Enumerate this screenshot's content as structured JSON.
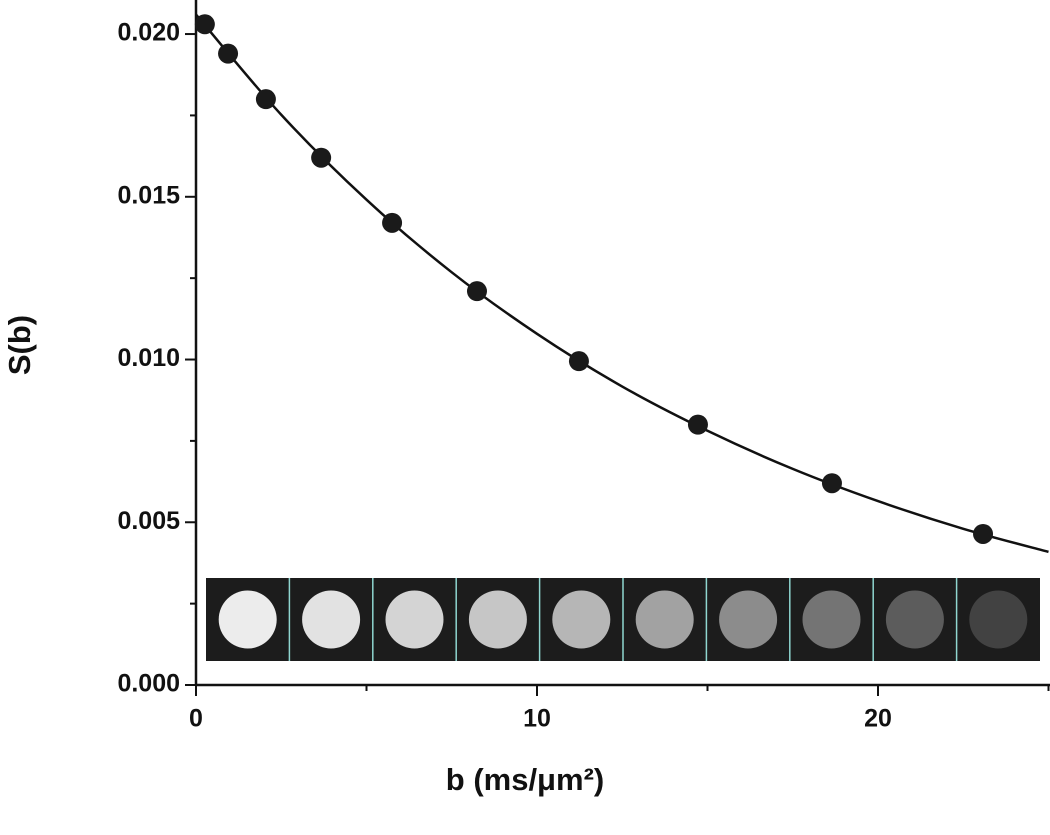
{
  "chart_data": {
    "type": "scatter",
    "xlabel": "b (ms/μm²)",
    "ylabel": "S(b)",
    "x": [
      0.26,
      0.94,
      2.05,
      3.67,
      5.75,
      8.24,
      11.23,
      14.72,
      18.65,
      23.08
    ],
    "series": [
      {
        "color": "#1a1a1a",
        "values": [
          0.0203,
          0.0194,
          0.018,
          0.0162,
          0.0142,
          0.0121,
          0.00995,
          0.008,
          0.0062,
          0.00464
        ]
      }
    ],
    "fit": {
      "color": "#111111",
      "x": [
        0,
        2.5,
        5,
        7.5,
        10,
        12.5,
        15,
        17.5,
        20,
        22.5,
        25
      ],
      "values": [
        0.0206,
        0.01752,
        0.01491,
        0.01268,
        0.01079,
        0.00917,
        0.00781,
        0.00664,
        0.00565,
        0.0048,
        0.00409
      ]
    },
    "xlim": [
      0,
      25
    ],
    "ylim": [
      0,
      0.021
    ],
    "xticks": [
      0,
      10,
      20
    ],
    "minor_xticks": [
      5,
      15,
      25
    ],
    "yticks": [
      {
        "value": 0,
        "label": "0.000"
      },
      {
        "value": 0.005,
        "label": "0.005"
      },
      {
        "value": 0.01,
        "label": "0.010"
      },
      {
        "value": 0.015,
        "label": "0.015"
      },
      {
        "value": 0.02,
        "label": "0.020"
      }
    ],
    "minor_yticks": [
      0.0025,
      0.0075,
      0.0125,
      0.0175
    ]
  }
}
